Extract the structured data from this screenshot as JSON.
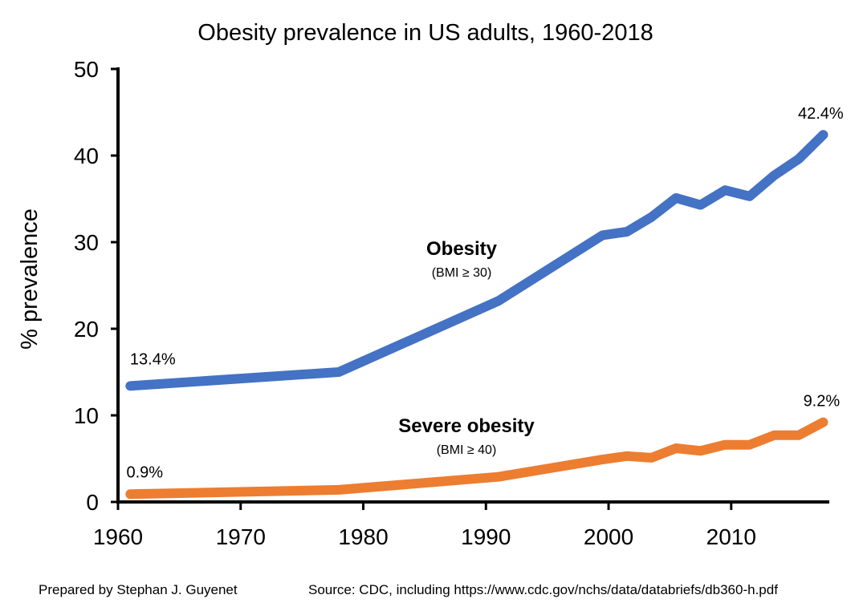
{
  "chart_data": {
    "type": "line",
    "title": "Obesity prevalence in US adults, 1960-2018",
    "ylabel": "% prevalence",
    "xlabel": "",
    "xlim": [
      1960,
      2018
    ],
    "ylim": [
      0,
      50
    ],
    "x_ticks": [
      "1960",
      "1970",
      "1980",
      "1990",
      "2000",
      "2010"
    ],
    "y_ticks": [
      "0",
      "10",
      "20",
      "30",
      "40",
      "50"
    ],
    "grid": false,
    "legend": "none",
    "series": [
      {
        "name": "Obesity",
        "sublabel": "(BMI ≥ 30)",
        "color": "#4472C4",
        "points": [
          [
            1961,
            13.4
          ],
          [
            1978,
            15.0
          ],
          [
            1991,
            23.2
          ],
          [
            1999.5,
            30.8
          ],
          [
            2001.5,
            31.2
          ],
          [
            2003.5,
            32.9
          ],
          [
            2005.5,
            35.1
          ],
          [
            2007.5,
            34.3
          ],
          [
            2009.5,
            36.0
          ],
          [
            2011.5,
            35.3
          ],
          [
            2013.5,
            37.7
          ],
          [
            2015.5,
            39.6
          ],
          [
            2017.5,
            42.4
          ]
        ],
        "start_label": "13.4%",
        "end_label": "42.4%"
      },
      {
        "name": "Severe obesity",
        "sublabel": "(BMI ≥ 40)",
        "color": "#ED7D31",
        "points": [
          [
            1961,
            0.9
          ],
          [
            1978,
            1.4
          ],
          [
            1991,
            2.9
          ],
          [
            1999.5,
            4.9
          ],
          [
            2001.5,
            5.3
          ],
          [
            2003.5,
            5.1
          ],
          [
            2005.5,
            6.2
          ],
          [
            2007.5,
            5.9
          ],
          [
            2009.5,
            6.6
          ],
          [
            2011.5,
            6.6
          ],
          [
            2013.5,
            7.7
          ],
          [
            2015.5,
            7.7
          ],
          [
            2017.5,
            9.2
          ]
        ],
        "start_label": "0.9%",
        "end_label": "9.2%"
      }
    ]
  },
  "footer": {
    "left": "Prepared by Stephan J. Guyenet",
    "right": "Source: CDC, including https://www.cdc.gov/nchs/data/databriefs/db360-h.pdf"
  }
}
